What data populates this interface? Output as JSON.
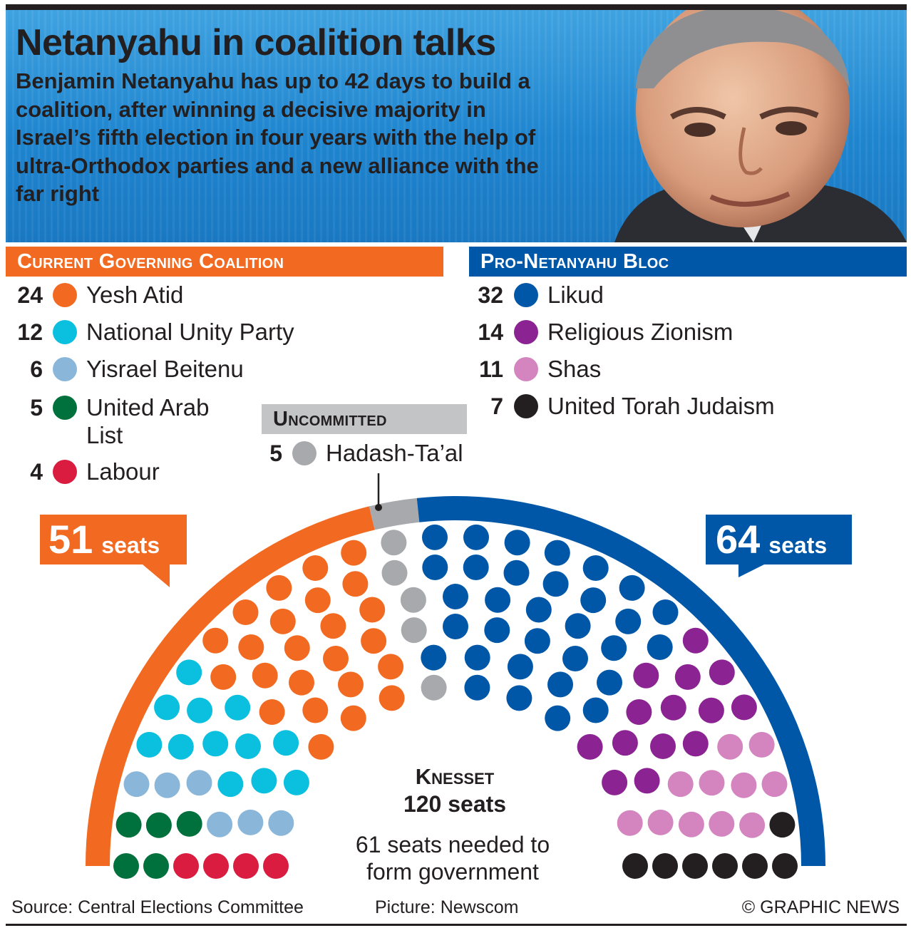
{
  "header": {
    "title": "Netanyahu in coalition talks",
    "subtitle": "Benjamin Netanyahu has up to 42 days to build a coalition, after winning a decisive majority in Israel’s fifth election in four years with the help of ultra-Orthodox parties and a new alliance with the far right"
  },
  "sections": {
    "coalition": "Current Governing Coalition",
    "bloc": "Pro-Netanyahu Bloc",
    "uncommitted": "Uncommitted"
  },
  "coalition_parties": [
    {
      "seats": "24",
      "name": "Yesh Atid",
      "color": "#f26a21"
    },
    {
      "seats": "12",
      "name": "National Unity Party",
      "color": "#0ac0de"
    },
    {
      "seats": "6",
      "name": "Yisrael Beitenu",
      "color": "#8ab6d9"
    },
    {
      "seats": "5",
      "name": "United Arab List",
      "color": "#00703c"
    },
    {
      "seats": "4",
      "name": "Labour",
      "color": "#d91c3f"
    }
  ],
  "bloc_parties": [
    {
      "seats": "32",
      "name": "Likud",
      "color": "#0057a8"
    },
    {
      "seats": "14",
      "name": "Religious Zionism",
      "color": "#8b2492"
    },
    {
      "seats": "11",
      "name": "Shas",
      "color": "#d485bf"
    },
    {
      "seats": "7",
      "name": "United Torah Judaism",
      "color": "#231f20"
    }
  ],
  "uncommitted_parties": [
    {
      "seats": "5",
      "name": "Hadash-Ta’al",
      "color": "#a7a9ac"
    }
  ],
  "callouts": {
    "left_number": "51",
    "left_unit": "seats",
    "right_number": "64",
    "right_unit": "seats"
  },
  "knesset": {
    "label": "Knesset",
    "seats_label": "120 seats",
    "majority_note": "61 seats needed to form government"
  },
  "footer": {
    "source": "Source: Central Elections Committee",
    "picture": "Picture: Newscom",
    "credit": "© GRAPHIC NEWS"
  },
  "chart_data": {
    "type": "parliament",
    "total": 120,
    "majority": 61,
    "blocs": [
      {
        "name": "Current Governing Coalition",
        "seats": 51,
        "color": "#f26a21"
      },
      {
        "name": "Uncommitted",
        "seats": 5,
        "color": "#a7a9ac"
      },
      {
        "name": "Pro-Netanyahu Bloc",
        "seats": 64,
        "color": "#0057a8"
      }
    ],
    "series": [
      {
        "name": "Labour",
        "values": [
          4
        ],
        "color": "#d91c3f"
      },
      {
        "name": "United Arab List",
        "values": [
          5
        ],
        "color": "#00703c"
      },
      {
        "name": "Yisrael Beitenu",
        "values": [
          6
        ],
        "color": "#8ab6d9"
      },
      {
        "name": "National Unity Party",
        "values": [
          12
        ],
        "color": "#0ac0de"
      },
      {
        "name": "Yesh Atid",
        "values": [
          24
        ],
        "color": "#f26a21"
      },
      {
        "name": "Hadash-Ta’al",
        "values": [
          5
        ],
        "color": "#a7a9ac"
      },
      {
        "name": "Likud",
        "values": [
          32
        ],
        "color": "#0057a8"
      },
      {
        "name": "Religious Zionism",
        "values": [
          14
        ],
        "color": "#8b2492"
      },
      {
        "name": "Shas",
        "values": [
          11
        ],
        "color": "#d485bf"
      },
      {
        "name": "United Torah Judaism",
        "values": [
          7
        ],
        "color": "#231f20"
      }
    ]
  }
}
